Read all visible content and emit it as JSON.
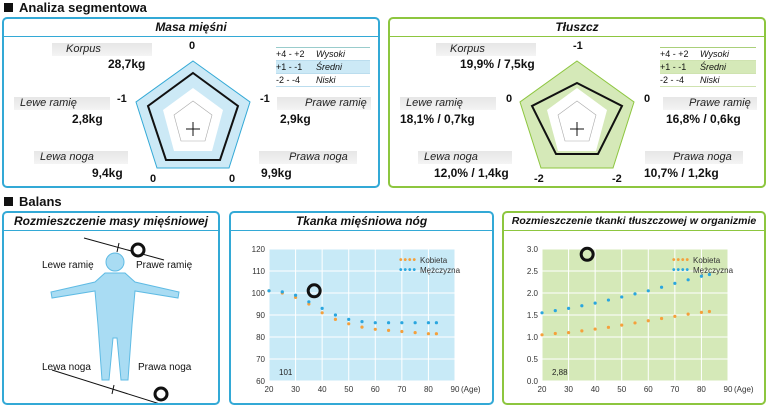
{
  "sections": {
    "segmental": "Analiza segmentowa",
    "balance": "Balans"
  },
  "muscle_panel": {
    "title": "Masa mięśni",
    "labels": {
      "trunk": "Korpus",
      "trunk_value": "28,7kg",
      "left_arm": "Lewe ramię",
      "left_arm_value": "2,8kg",
      "right_arm": "Prawe ramię",
      "right_arm_value": "2,9kg",
      "left_leg": "Lewa noga",
      "left_leg_value": "9,4kg",
      "right_leg": "Prawa noga",
      "right_leg_value": "9,9kg"
    },
    "axis_marks": {
      "top": "0",
      "left": "-1",
      "right": "-1",
      "bottom_left": "0",
      "bottom_right": "0"
    },
    "legend": [
      {
        "range": "+4 - +2",
        "label": "Wysoki"
      },
      {
        "range": "+1 - -1",
        "label": "Średni"
      },
      {
        "range": "-2 - -4",
        "label": "Niski"
      }
    ],
    "accent": "#33a9d6",
    "band_color": "#cce9f6"
  },
  "fat_panel": {
    "title": "Tłuszcz",
    "labels": {
      "trunk": "Korpus",
      "trunk_value": "19,9% / 7,5kg",
      "left_arm": "Lewe ramię",
      "left_arm_value": "18,1% / 0,7kg",
      "right_arm": "Prawe ramię",
      "right_arm_value": "16,8% / 0,6kg",
      "left_leg": "Lewa noga",
      "left_leg_value": "12,0% / 1,4kg",
      "right_leg": "Prawa noga",
      "right_leg_value": "10,7% / 1,2kg"
    },
    "axis_marks": {
      "top": "-1",
      "left": "0",
      "right": "0",
      "bottom_left": "-2",
      "bottom_right": "-2"
    },
    "legend": [
      {
        "range": "+4 - +2",
        "label": "Wysoki"
      },
      {
        "range": "+1 - -1",
        "label": "Średni"
      },
      {
        "range": "-2 - -4",
        "label": "Niski"
      }
    ],
    "accent": "#8dc63f",
    "band_color": "#d5e9b8"
  },
  "distribution_panel": {
    "title": "Rozmieszczenie masy mięśniowej",
    "left_arm": "Lewe ramię",
    "right_arm": "Prawe ramię",
    "left_leg": "Lewa noga",
    "right_leg": "Prawa noga"
  },
  "chart_data": [
    {
      "type": "line",
      "title": "Tkanka mięśniowa nóg",
      "xlabel": "(Age)",
      "x_ticks": [
        20,
        30,
        40,
        50,
        60,
        70,
        80,
        90
      ],
      "y_ticks": [
        60,
        70,
        80,
        90,
        100,
        110,
        120
      ],
      "xlim": [
        20,
        90
      ],
      "ylim": [
        60,
        120
      ],
      "series": [
        {
          "name": "Kobieta",
          "color": "#f5a03c",
          "x": [
            20,
            25,
            30,
            35,
            40,
            45,
            50,
            55,
            60,
            65,
            70,
            75,
            80,
            83
          ],
          "y": [
            101,
            100,
            98,
            95,
            91,
            88,
            86,
            84.5,
            83.5,
            83,
            82.5,
            82,
            81.5,
            81.5
          ]
        },
        {
          "name": "Mężczyzna",
          "color": "#2aa6df",
          "x": [
            20,
            25,
            30,
            35,
            40,
            45,
            50,
            55,
            60,
            65,
            70,
            75,
            80,
            83
          ],
          "y": [
            101,
            100.5,
            99,
            96,
            93,
            90,
            88,
            87,
            86.5,
            86.5,
            86.5,
            86.5,
            86.5,
            86.5
          ]
        }
      ],
      "marker": {
        "x": 37,
        "y": 101
      },
      "value_label": "101"
    },
    {
      "type": "line",
      "title": "Rozmieszczenie tkanki tłuszczowej w organizmie",
      "xlabel": "(Age)",
      "x_ticks": [
        20,
        30,
        40,
        50,
        60,
        70,
        80,
        90
      ],
      "y_ticks": [
        "0.0",
        "0.5",
        "1.0",
        "1.5",
        "2.0",
        "2.5",
        "3.0"
      ],
      "xlim": [
        20,
        90
      ],
      "ylim": [
        0,
        3.0
      ],
      "series": [
        {
          "name": "Kobieta",
          "color": "#f5a03c",
          "x": [
            20,
            25,
            30,
            35,
            40,
            45,
            50,
            55,
            60,
            65,
            70,
            75,
            80,
            83
          ],
          "y": [
            1.05,
            1.08,
            1.1,
            1.14,
            1.18,
            1.22,
            1.27,
            1.32,
            1.37,
            1.42,
            1.47,
            1.52,
            1.56,
            1.58
          ]
        },
        {
          "name": "Mężczyzna",
          "color": "#2aa6df",
          "x": [
            20,
            25,
            30,
            35,
            40,
            45,
            50,
            55,
            60,
            65,
            70,
            75,
            80,
            83
          ],
          "y": [
            1.55,
            1.6,
            1.65,
            1.71,
            1.77,
            1.84,
            1.91,
            1.98,
            2.05,
            2.13,
            2.22,
            2.3,
            2.38,
            2.42
          ]
        }
      ],
      "marker": {
        "x": 37,
        "y": 2.88
      },
      "value_label": "2,88"
    }
  ]
}
